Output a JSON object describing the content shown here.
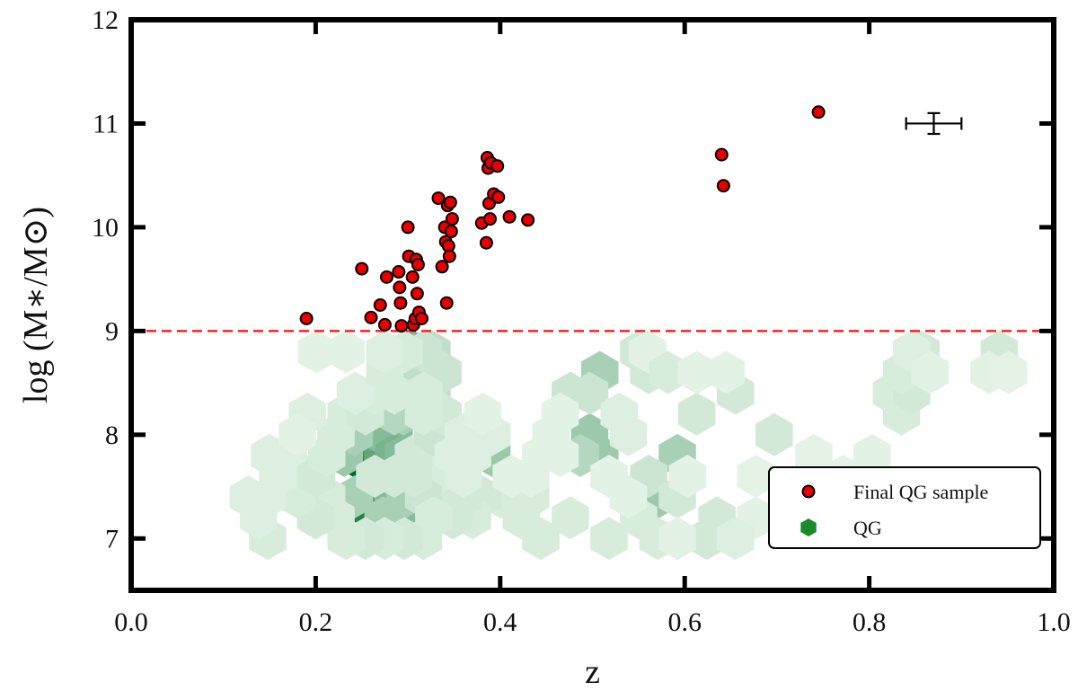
{
  "chart_data": {
    "type": "scatter",
    "title": "",
    "xlabel": "z",
    "ylabel": "log (M∗/M⊙)",
    "xlim": [
      0.0,
      1.0
    ],
    "ylim": [
      6.5,
      12.0
    ],
    "xticks": [
      "0.0",
      "0.2",
      "0.4",
      "0.6",
      "0.8",
      "1.0"
    ],
    "yticks": [
      "7",
      "8",
      "9",
      "10",
      "11",
      "12"
    ],
    "threshold_line": {
      "y": 9.0,
      "color": "#ff2020",
      "style": "dashed"
    },
    "legend": {
      "placement": "lower-right",
      "entries": [
        {
          "label": "Final QG sample",
          "marker": "circle",
          "color": "#e80000"
        },
        {
          "label": "QG",
          "marker": "hexagon",
          "color": "#1a8a2a"
        }
      ]
    },
    "error_bar": {
      "x": 0.87,
      "y": 11.0,
      "xerr": 0.03,
      "yerr": 0.1
    },
    "series": [
      {
        "name": "Final QG sample",
        "color": "#e80000",
        "points": [
          [
            0.19,
            9.12
          ],
          [
            0.25,
            9.6
          ],
          [
            0.26,
            9.13
          ],
          [
            0.27,
            9.25
          ],
          [
            0.275,
            9.06
          ],
          [
            0.277,
            9.52
          ],
          [
            0.29,
            9.57
          ],
          [
            0.291,
            9.42
          ],
          [
            0.292,
            9.27
          ],
          [
            0.293,
            9.05
          ],
          [
            0.3,
            10.0
          ],
          [
            0.301,
            9.72
          ],
          [
            0.305,
            9.52
          ],
          [
            0.306,
            9.06
          ],
          [
            0.308,
            9.12
          ],
          [
            0.309,
            9.69
          ],
          [
            0.31,
            9.36
          ],
          [
            0.311,
            9.64
          ],
          [
            0.312,
            9.18
          ],
          [
            0.315,
            9.12
          ],
          [
            0.333,
            10.28
          ],
          [
            0.337,
            9.62
          ],
          [
            0.34,
            10.0
          ],
          [
            0.341,
            9.86
          ],
          [
            0.342,
            9.27
          ],
          [
            0.343,
            10.21
          ],
          [
            0.344,
            9.82
          ],
          [
            0.345,
            9.72
          ],
          [
            0.346,
            10.24
          ],
          [
            0.347,
            9.96
          ],
          [
            0.348,
            10.08
          ],
          [
            0.38,
            10.04
          ],
          [
            0.385,
            9.85
          ],
          [
            0.386,
            10.67
          ],
          [
            0.387,
            10.57
          ],
          [
            0.388,
            10.23
          ],
          [
            0.389,
            10.08
          ],
          [
            0.39,
            10.62
          ],
          [
            0.393,
            10.32
          ],
          [
            0.397,
            10.59
          ],
          [
            0.398,
            10.29
          ],
          [
            0.41,
            10.1
          ],
          [
            0.43,
            10.07
          ],
          [
            0.64,
            10.7
          ],
          [
            0.642,
            10.4
          ],
          [
            0.745,
            11.11
          ]
        ]
      },
      {
        "name": "QG",
        "color": "#1a8a2a",
        "bins": [
          [
            0.241,
            7.8,
            1.0
          ],
          [
            0.252,
            8.0,
            0.85
          ],
          [
            0.252,
            7.2,
            0.85
          ],
          [
            0.263,
            7.4,
            0.7
          ],
          [
            0.272,
            7.8,
            0.6
          ],
          [
            0.272,
            8.0,
            0.45
          ],
          [
            0.285,
            8.0,
            0.45
          ],
          [
            0.285,
            7.8,
            0.5
          ],
          [
            0.295,
            7.8,
            0.45
          ],
          [
            0.284,
            7.4,
            0.45
          ],
          [
            0.306,
            8.8,
            0.45
          ],
          [
            0.306,
            7.2,
            0.45
          ],
          [
            0.231,
            7.8,
            0.35
          ],
          [
            0.242,
            8.0,
            0.3
          ],
          [
            0.295,
            8.2,
            0.3
          ],
          [
            0.296,
            8.6,
            0.3
          ],
          [
            0.242,
            7.4,
            0.3
          ],
          [
            0.297,
            7.4,
            0.3
          ],
          [
            0.273,
            7.2,
            0.3
          ],
          [
            0.285,
            8.2,
            0.25
          ],
          [
            0.307,
            8.6,
            0.2
          ],
          [
            0.326,
            8.4,
            0.2
          ],
          [
            0.326,
            8.8,
            0.2
          ],
          [
            0.317,
            8.8,
            0.15
          ],
          [
            0.338,
            8.6,
            0.15
          ],
          [
            0.391,
            7.8,
            0.35
          ],
          [
            0.497,
            8.0,
            0.35
          ],
          [
            0.508,
            7.8,
            0.35
          ],
          [
            0.571,
            7.4,
            0.35
          ],
          [
            0.592,
            7.8,
            0.3
          ],
          [
            0.508,
            8.6,
            0.3
          ],
          [
            0.487,
            7.8,
            0.25
          ],
          [
            0.476,
            8.4,
            0.15
          ],
          [
            0.497,
            8.4,
            0.15
          ],
          [
            0.55,
            8.8,
            0.12
          ],
          [
            0.561,
            8.6,
            0.12
          ],
          [
            0.655,
            8.4,
            0.12
          ],
          [
            0.697,
            8.0,
            0.12
          ],
          [
            0.613,
            8.2,
            0.12
          ],
          [
            0.561,
            7.6,
            0.15
          ],
          [
            0.592,
            7.4,
            0.12
          ],
          [
            0.635,
            7.2,
            0.12
          ],
          [
            0.624,
            7.0,
            0.12
          ],
          [
            0.55,
            7.2,
            0.1
          ],
          [
            0.518,
            7.0,
            0.1
          ],
          [
            0.571,
            7.0,
            0.1
          ],
          [
            0.476,
            7.2,
            0.1
          ],
          [
            0.444,
            7.0,
            0.1
          ],
          [
            0.423,
            7.2,
            0.1
          ],
          [
            0.433,
            7.4,
            0.1
          ],
          [
            0.401,
            7.4,
            0.1
          ],
          [
            0.381,
            7.4,
            0.12
          ],
          [
            0.37,
            7.2,
            0.1
          ],
          [
            0.36,
            7.4,
            0.12
          ],
          [
            0.349,
            7.2,
            0.12
          ],
          [
            0.338,
            7.4,
            0.12
          ],
          [
            0.328,
            7.6,
            0.1
          ],
          [
            0.317,
            7.4,
            0.15
          ],
          [
            0.328,
            7.2,
            0.1
          ],
          [
            0.317,
            7.0,
            0.1
          ],
          [
            0.296,
            7.0,
            0.12
          ],
          [
            0.275,
            7.0,
            0.1
          ],
          [
            0.254,
            7.0,
            0.12
          ],
          [
            0.233,
            7.0,
            0.1
          ],
          [
            0.222,
            7.2,
            0.1
          ],
          [
            0.212,
            7.4,
            0.1
          ],
          [
            0.2,
            7.2,
            0.12
          ],
          [
            0.191,
            7.6,
            0.1
          ],
          [
            0.18,
            7.4,
            0.1
          ],
          [
            0.159,
            7.6,
            0.08
          ],
          [
            0.148,
            7.4,
            0.08
          ],
          [
            0.148,
            7.0,
            0.1
          ],
          [
            0.138,
            7.2,
            0.08
          ],
          [
            0.127,
            7.4,
            0.08
          ],
          [
            0.17,
            7.8,
            0.08
          ],
          [
            0.15,
            7.8,
            0.08
          ],
          [
            0.201,
            7.6,
            0.12
          ],
          [
            0.212,
            7.8,
            0.1
          ],
          [
            0.222,
            8.0,
            0.1
          ],
          [
            0.233,
            8.2,
            0.1
          ],
          [
            0.254,
            8.2,
            0.12
          ],
          [
            0.264,
            8.4,
            0.1
          ],
          [
            0.243,
            8.4,
            0.08
          ],
          [
            0.275,
            8.6,
            0.1
          ],
          [
            0.285,
            8.4,
            0.1
          ],
          [
            0.264,
            7.6,
            0.12
          ],
          [
            0.285,
            7.6,
            0.12
          ],
          [
            0.306,
            7.6,
            0.12
          ],
          [
            0.306,
            7.8,
            0.12
          ],
          [
            0.327,
            8.0,
            0.15
          ],
          [
            0.338,
            8.2,
            0.12
          ],
          [
            0.317,
            8.2,
            0.1
          ],
          [
            0.317,
            8.4,
            0.1
          ],
          [
            0.296,
            8.8,
            0.1
          ],
          [
            0.275,
            8.8,
            0.08
          ],
          [
            0.233,
            8.8,
            0.06
          ],
          [
            0.201,
            8.8,
            0.06
          ],
          [
            0.191,
            8.2,
            0.08
          ],
          [
            0.18,
            8.0,
            0.06
          ],
          [
            0.36,
            8.0,
            0.08
          ],
          [
            0.349,
            7.8,
            0.08
          ],
          [
            0.36,
            7.6,
            0.08
          ],
          [
            0.37,
            7.8,
            0.08
          ],
          [
            0.391,
            8.0,
            0.08
          ],
          [
            0.412,
            7.6,
            0.06
          ],
          [
            0.433,
            7.6,
            0.06
          ],
          [
            0.444,
            7.8,
            0.06
          ],
          [
            0.455,
            8.0,
            0.06
          ],
          [
            0.465,
            7.8,
            0.06
          ],
          [
            0.518,
            7.6,
            0.06
          ],
          [
            0.539,
            7.4,
            0.06
          ],
          [
            0.592,
            7.0,
            0.06
          ],
          [
            0.603,
            7.6,
            0.06
          ],
          [
            0.529,
            8.2,
            0.08
          ],
          [
            0.539,
            8.0,
            0.08
          ],
          [
            0.465,
            8.2,
            0.06
          ],
          [
            0.381,
            8.2,
            0.06
          ],
          [
            0.56,
            8.8,
            0.06
          ],
          [
            0.582,
            8.6,
            0.1
          ],
          [
            0.613,
            8.6,
            0.06
          ],
          [
            0.645,
            8.6,
            0.06
          ],
          [
            0.677,
            7.2,
            0.06
          ],
          [
            0.655,
            7.0,
            0.08
          ],
          [
            0.677,
            7.6,
            0.05
          ],
          [
            0.74,
            7.8,
            0.05
          ],
          [
            0.772,
            7.6,
            0.05
          ],
          [
            0.803,
            7.8,
            0.06
          ],
          [
            0.824,
            8.4,
            0.1
          ],
          [
            0.835,
            8.2,
            0.1
          ],
          [
            0.846,
            8.4,
            0.12
          ],
          [
            0.835,
            8.6,
            0.1
          ],
          [
            0.856,
            8.8,
            0.12
          ],
          [
            0.846,
            8.8,
            0.08
          ],
          [
            0.866,
            8.6,
            0.06
          ],
          [
            0.941,
            8.8,
            0.12
          ],
          [
            0.93,
            8.6,
            0.06
          ],
          [
            0.951,
            8.6,
            0.05
          ]
        ]
      }
    ]
  }
}
